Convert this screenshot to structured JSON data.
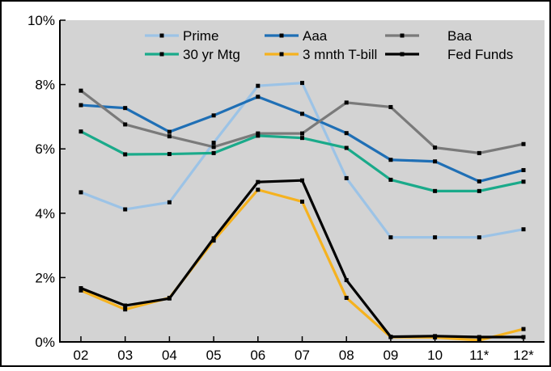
{
  "chart_data": {
    "type": "line",
    "title": "",
    "xlabel": "",
    "ylabel": "",
    "categories": [
      "02",
      "03",
      "04",
      "05",
      "06",
      "07",
      "08",
      "09",
      "10",
      "11*",
      "12*"
    ],
    "ylim": [
      0,
      10
    ],
    "y_ticks": [
      0,
      2,
      4,
      6,
      8,
      10
    ],
    "y_tick_labels": [
      "0%",
      "2%",
      "4%",
      "6%",
      "8%",
      "10%"
    ],
    "grid": false,
    "legend_position": "top",
    "plot_background": "#d3d3d3",
    "series": [
      {
        "name": "Prime",
        "color": "#9cc3e6",
        "values": [
          4.65,
          4.12,
          4.34,
          6.19,
          7.96,
          8.05,
          5.09,
          3.25,
          3.25,
          3.25,
          3.5
        ]
      },
      {
        "name": "Aaa",
        "color": "#1f6fb5",
        "values": [
          7.36,
          7.27,
          6.53,
          7.04,
          7.62,
          7.09,
          6.49,
          5.66,
          5.61,
          4.99,
          5.34
        ]
      },
      {
        "name": "Baa",
        "color": "#7a7a7a",
        "values": [
          7.81,
          6.76,
          6.39,
          6.06,
          6.48,
          6.48,
          7.44,
          7.3,
          6.04,
          5.87,
          6.15
        ]
      },
      {
        "name": "30 yr Mtg",
        "color": "#1aaa8a",
        "values": [
          6.54,
          5.83,
          5.84,
          5.87,
          6.41,
          6.34,
          6.03,
          5.04,
          4.69,
          4.69,
          4.98
        ]
      },
      {
        "name": "3 mnth T-bill",
        "color": "#f5b21f",
        "values": [
          1.6,
          1.01,
          1.37,
          3.15,
          4.73,
          4.36,
          1.37,
          0.15,
          0.14,
          0.05,
          0.4
        ]
      },
      {
        "name": "Fed Funds",
        "color": "#000000",
        "values": [
          1.67,
          1.13,
          1.35,
          3.22,
          4.97,
          5.02,
          1.92,
          0.16,
          0.18,
          0.15,
          0.15
        ]
      }
    ]
  }
}
